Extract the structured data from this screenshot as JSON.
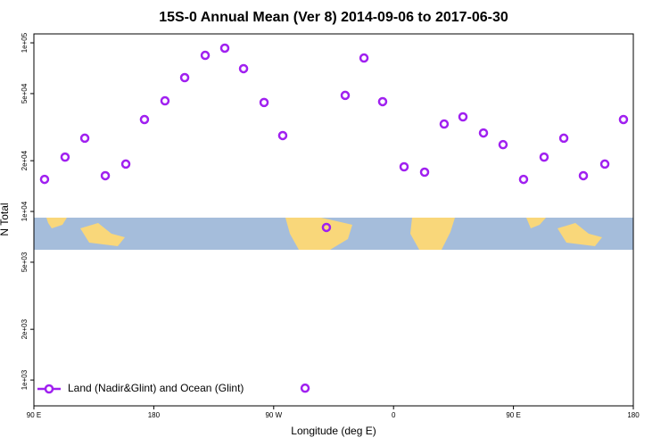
{
  "chart_data": {
    "type": "scatter",
    "title": "15S-0 Annual Mean (Ver 8)   2014-09-06 to 2017-06-30",
    "xlabel": "Longitude (deg E)",
    "ylabel": "N Total",
    "log_y": true,
    "legend": "lower left",
    "xlim": [
      90,
      540
    ],
    "ylim": [
      703,
      113000
    ],
    "xticks": [
      {
        "value": 90,
        "label": "90 E"
      },
      180,
      {
        "value": 270,
        "label": "90 W"
      },
      {
        "value": 360,
        "label": "0"
      },
      {
        "value": 450,
        "label": "90 E"
      },
      {
        "value": 540,
        "label": "180"
      }
    ],
    "yticks": [
      {
        "value": 1000,
        "label": "1e+03"
      },
      {
        "value": 2000,
        "label": "2e+03"
      },
      {
        "value": 5000,
        "label": "5e+03"
      },
      {
        "value": 10000,
        "label": "1e+04"
      },
      {
        "value": 20000,
        "label": "2e+04"
      },
      {
        "value": 50000,
        "label": "5e+04"
      },
      {
        "value": 100000,
        "label": "1e+05"
      }
    ],
    "series": [
      {
        "name": "Land (Nadir&Glint) and Ocean (Glint)",
        "color": "#a020f0",
        "x": [
          98,
          113.4,
          128.2,
          143.6,
          159,
          173,
          188.4,
          203.2,
          218.6,
          233.3,
          247.4,
          262.8,
          276.8,
          293.6,
          309.6,
          323.7,
          337.8,
          351.8,
          367.9,
          383.3,
          398,
          412.1,
          427.5,
          442.2,
          457.6,
          473,
          487.8,
          502.5,
          518.6,
          532.6
        ],
        "values": [
          15500,
          21000,
          27200,
          16300,
          19100,
          35100,
          45300,
          62200,
          84300,
          93000,
          70300,
          44300,
          28200,
          895,
          8040,
          48800,
          81300,
          44800,
          18400,
          17100,
          33000,
          36400,
          29200,
          24900,
          15500,
          21000,
          27200,
          16300,
          19100,
          35100
        ]
      }
    ]
  }
}
